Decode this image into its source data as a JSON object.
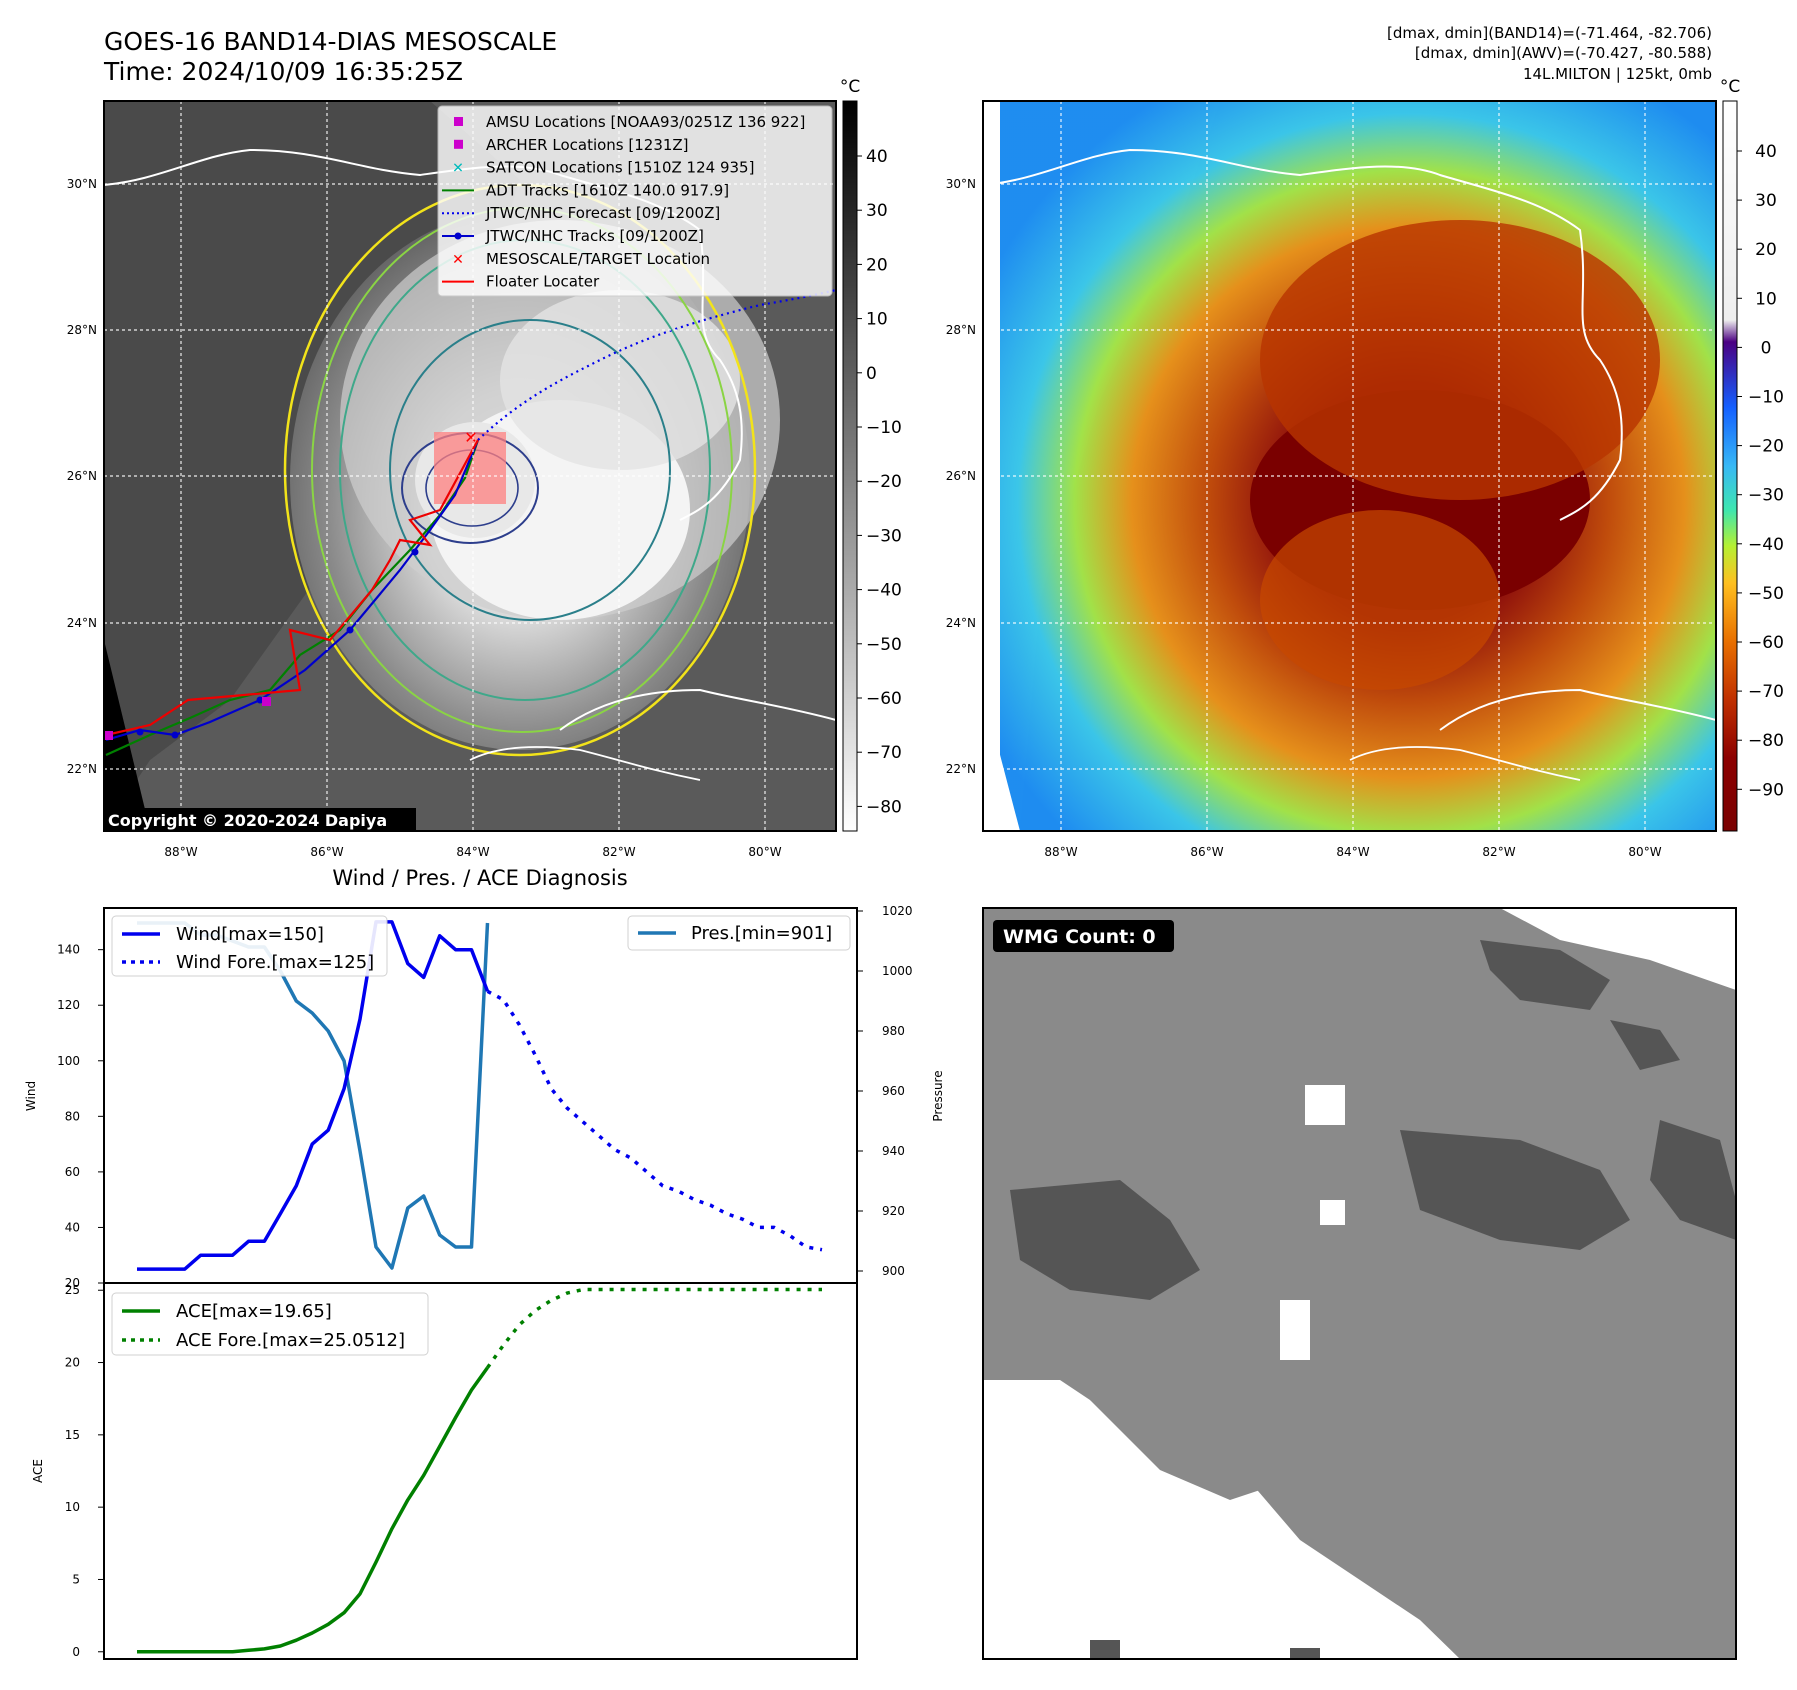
{
  "header": {
    "title_line1": "GOES-16 BAND14-DIAS MESOSCALE",
    "title_line2": "Time: 2024/10/09 16:35:25Z",
    "info_line1": "[dmax, dmin](BAND14)=(-71.464, -82.706)",
    "info_line2": "[dmax, dmin](AWV)=(-70.427, -80.588)",
    "info_line3": "14L.MILTON | 125kt, 0mb",
    "copyright": "Copyright © 2020-2024 Dapiya"
  },
  "maps": {
    "lat_labels": [
      "30°N",
      "28°N",
      "26°N",
      "24°N",
      "22°N"
    ],
    "lon_labels": [
      "88°W",
      "86°W",
      "84°W",
      "82°W",
      "80°W"
    ],
    "left_colorbar": {
      "unit": "°C",
      "ticks": [
        "40",
        "30",
        "20",
        "10",
        "0",
        "−10",
        "−20",
        "−30",
        "−40",
        "−50",
        "−60",
        "−70",
        "−80"
      ],
      "colors": {
        "top": "#000000",
        "bottom": "#ffffff"
      }
    },
    "right_colorbar": {
      "unit": "°C",
      "ticks": [
        "40",
        "30",
        "20",
        "10",
        "0",
        "−10",
        "−20",
        "−30",
        "−40",
        "−50",
        "−60",
        "−70",
        "−80",
        "−90"
      ]
    },
    "legend": [
      {
        "label": "AMSU Locations [NOAA93/0251Z 136 922]",
        "color": "#cc00cc",
        "symbol": "square"
      },
      {
        "label": "ARCHER Locations [1231Z]",
        "color": "#cc00cc",
        "symbol": "square"
      },
      {
        "label": "SATCON Locations [1510Z 124 935]",
        "color": "#00bcbc",
        "symbol": "x"
      },
      {
        "label": "ADT Tracks [1610Z 140.0 917.9]",
        "color": "#008000",
        "symbol": "line"
      },
      {
        "label": "JTWC/NHC Forecast [09/1200Z]",
        "color": "#0000ee",
        "symbol": "dotted"
      },
      {
        "label": "JTWC/NHC Tracks [09/1200Z]",
        "color": "#0000cc",
        "symbol": "line-dot"
      },
      {
        "label": "MESOSCALE/TARGET Location",
        "color": "#ff0000",
        "symbol": "x"
      },
      {
        "label": "Floater Locater",
        "color": "#ff0000",
        "symbol": "line"
      }
    ]
  },
  "wind_panel": {
    "title": "Wind / Pres. / ACE Diagnosis",
    "ylabel_left": "Wind",
    "ylabel_right": "Pressure",
    "legend_wind": "Wind[max=150]",
    "legend_wind_fore": "Wind Fore.[max=125]",
    "legend_pres": "Pres.[min=901]",
    "colors": {
      "wind": "#0000ee",
      "pres": "#1f77b4"
    }
  },
  "ace_panel": {
    "ylabel": "ACE",
    "legend_ace": "ACE[max=19.65]",
    "legend_ace_fore": "ACE Fore.[max=25.0512]",
    "color": "#008000"
  },
  "wmg_panel": {
    "label": "WMG Count: 0"
  },
  "chart_data": [
    {
      "type": "line",
      "title": "Wind / Pres. / ACE Diagnosis",
      "ylabel": "Wind",
      "ylim": [
        20,
        155
      ],
      "yticks": [
        20,
        40,
        60,
        80,
        100,
        120,
        140
      ],
      "x": [
        0,
        1,
        2,
        3,
        4,
        5,
        6,
        7,
        8,
        9,
        10,
        11,
        12,
        13,
        14,
        15,
        16,
        17,
        18,
        19,
        20,
        21,
        22,
        23,
        24,
        25,
        26,
        27,
        28,
        29,
        30,
        31,
        32,
        33,
        34,
        35,
        36,
        37,
        38,
        39,
        40,
        41,
        42,
        43
      ],
      "series": [
        {
          "name": "Wind[max=150]",
          "values": [
            25,
            25,
            25,
            25,
            30,
            30,
            30,
            35,
            35,
            45,
            55,
            70,
            75,
            90,
            115,
            150,
            150,
            135,
            130,
            145,
            140,
            140,
            125,
            null,
            null,
            null,
            null,
            null,
            null,
            null,
            null,
            null,
            null,
            null,
            null,
            null,
            null,
            null,
            null,
            null,
            null,
            null,
            null,
            null
          ]
        },
        {
          "name": "Wind Fore.[max=125]",
          "values": [
            null,
            null,
            null,
            null,
            null,
            null,
            null,
            null,
            null,
            null,
            null,
            null,
            null,
            null,
            null,
            null,
            null,
            null,
            null,
            null,
            null,
            null,
            125,
            122,
            113,
            102,
            90,
            83,
            78,
            73,
            68,
            65,
            60,
            55,
            53,
            50,
            48,
            45,
            43,
            40,
            40,
            37,
            33,
            32
          ]
        }
      ]
    },
    {
      "type": "line",
      "ylabel": "Pressure",
      "ylim": [
        896,
        1021
      ],
      "yticks": [
        900,
        920,
        940,
        960,
        980,
        1000,
        1020
      ],
      "x": [
        0,
        1,
        2,
        3,
        4,
        5,
        6,
        7,
        8,
        9,
        10,
        11,
        12,
        13,
        14,
        15,
        16,
        17,
        18,
        19,
        20,
        21,
        22
      ],
      "series": [
        {
          "name": "Pres.[min=901]",
          "values": [
            1016,
            1016,
            1016,
            1016,
            1012,
            1012,
            1010,
            1008,
            1008,
            1000,
            990,
            986,
            980,
            970,
            940,
            908,
            901,
            921,
            925,
            912,
            908,
            908,
            1016
          ]
        }
      ]
    },
    {
      "type": "line",
      "ylabel": "ACE",
      "ylim": [
        -0.5,
        25.5
      ],
      "yticks": [
        0,
        5,
        10,
        15,
        20,
        25
      ],
      "x": [
        0,
        1,
        2,
        3,
        4,
        5,
        6,
        7,
        8,
        9,
        10,
        11,
        12,
        13,
        14,
        15,
        16,
        17,
        18,
        19,
        20,
        21,
        22,
        23,
        24,
        25,
        26,
        27,
        28,
        29,
        30,
        31,
        32,
        33,
        34,
        35,
        36,
        37,
        38,
        39,
        40,
        41,
        42,
        43
      ],
      "series": [
        {
          "name": "ACE[max=19.65]",
          "values": [
            0,
            0,
            0,
            0,
            0,
            0,
            0,
            0.1,
            0.2,
            0.4,
            0.8,
            1.3,
            1.9,
            2.7,
            4.0,
            6.2,
            8.5,
            10.5,
            12.2,
            14.2,
            16.2,
            18.1,
            19.65,
            null,
            null,
            null,
            null,
            null,
            null,
            null,
            null,
            null,
            null,
            null,
            null,
            null,
            null,
            null,
            null,
            null,
            null,
            null,
            null,
            null
          ]
        },
        {
          "name": "ACE Fore.[max=25.0512]",
          "values": [
            null,
            null,
            null,
            null,
            null,
            null,
            null,
            null,
            null,
            null,
            null,
            null,
            null,
            null,
            null,
            null,
            null,
            null,
            null,
            null,
            null,
            null,
            19.65,
            21.2,
            22.6,
            23.6,
            24.3,
            24.8,
            25.05,
            25.05,
            25.05,
            25.05,
            25.05,
            25.05,
            25.05,
            25.05,
            25.05,
            25.05,
            25.05,
            25.05,
            25.05,
            25.05,
            25.05,
            25.05
          ]
        }
      ]
    }
  ]
}
